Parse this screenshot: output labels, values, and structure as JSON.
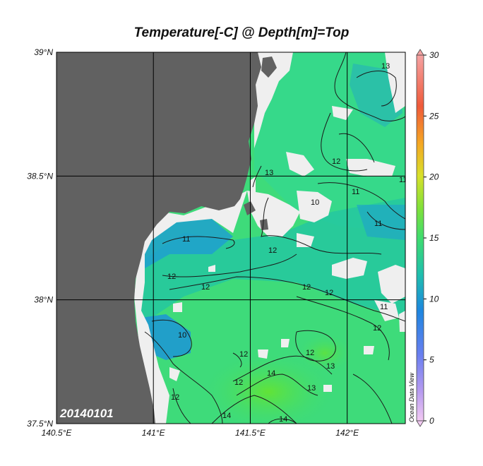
{
  "title": "Temperature[-C] @ Depth[m]=Top",
  "date_stamp": "20140101",
  "watermark": "Ocean Data View",
  "map": {
    "lon_range": [
      140.5,
      142.3
    ],
    "lat_range": [
      37.5,
      39.0
    ],
    "lon_ticks": [
      {
        "value": 140.5,
        "label": "140.5°E"
      },
      {
        "value": 141.0,
        "label": "141°E"
      },
      {
        "value": 141.5,
        "label": "141.5°E"
      },
      {
        "value": 142.0,
        "label": "142°E"
      }
    ],
    "lat_ticks": [
      {
        "value": 37.5,
        "label": "37.5°N"
      },
      {
        "value": 38.0,
        "label": "38°N"
      },
      {
        "value": 38.5,
        "label": "38.5°N"
      },
      {
        "value": 39.0,
        "label": "39°N"
      }
    ],
    "grid": true,
    "land_color": "#616161",
    "missing_color": "#efefef"
  },
  "colorbar": {
    "range": [
      0,
      30
    ],
    "ticks": [
      "30",
      "25",
      "20",
      "15",
      "10",
      "5",
      "0"
    ]
  },
  "contour_labels": [
    "13",
    "12",
    "11",
    "13",
    "11",
    "11",
    "10",
    "12",
    "11",
    "12",
    "12",
    "12",
    "12",
    "11",
    "12",
    "10",
    "12",
    "12",
    "12",
    "13",
    "14",
    "13",
    "12",
    "14",
    "14"
  ],
  "colors": {
    "warm_green": "#52e04a",
    "green": "#3fdc76",
    "teal": "#1fc29b",
    "blue": "#1e98d2"
  }
}
